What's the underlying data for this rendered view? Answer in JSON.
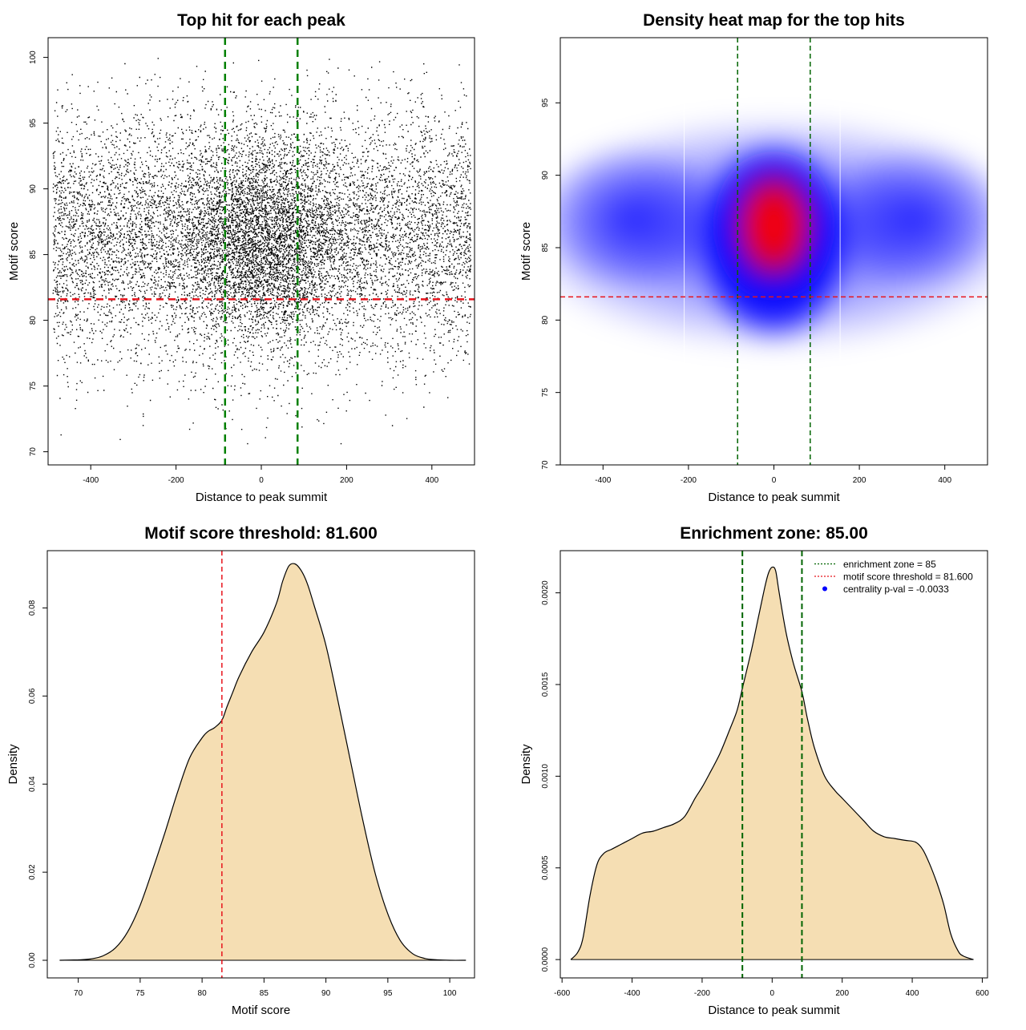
{
  "chart_data": [
    {
      "id": "scatter",
      "type": "scatter",
      "title": "Top hit for each peak",
      "xlabel": "Distance to peak summit",
      "ylabel": "Motif score",
      "xlim": [
        -500,
        500
      ],
      "ylim": [
        69,
        101.5
      ],
      "xticks": [
        -400,
        -200,
        0,
        200,
        400
      ],
      "yticks": [
        70,
        75,
        80,
        85,
        90,
        95,
        100
      ],
      "vlines": [
        -85,
        85
      ],
      "hline": 81.6,
      "distribution": {
        "n_points": 12000,
        "x_range": [
          -490,
          490
        ],
        "central_fraction": 0.28,
        "central_x_sd": 95,
        "background_score_mean": 86.5,
        "background_score_sd": 4.7,
        "central_score_mean": 86.0,
        "central_score_sd": 3.8
      },
      "grid": false
    },
    {
      "id": "heatmap",
      "type": "heatmap",
      "title": "Density heat map for the top hits",
      "xlabel": "Distance to peak summit",
      "ylabel": "Motif score",
      "xlim": [
        -500,
        500
      ],
      "ylim": [
        70,
        99.5
      ],
      "xticks": [
        -400,
        -200,
        0,
        200,
        400
      ],
      "yticks": [
        70,
        75,
        80,
        85,
        90,
        95
      ],
      "vlines": [
        -85,
        85
      ],
      "hline": 81.6,
      "peak": {
        "x": 0,
        "y": 86.5
      },
      "colors": {
        "low": "#ffffff",
        "mid": "#0000ff",
        "high": "#ff0000"
      },
      "grid": false
    },
    {
      "id": "score_density",
      "type": "area",
      "title": "Motif score threshold: 81.600",
      "xlabel": "Motif score",
      "ylabel": "Density",
      "xlim": [
        67.5,
        102
      ],
      "ylim": [
        -0.004,
        0.093
      ],
      "xticks": [
        70,
        75,
        80,
        85,
        90,
        95,
        100
      ],
      "yticks": [
        0.0,
        0.02,
        0.04,
        0.06,
        0.08
      ],
      "ytick_labels": [
        "0.00",
        "0.02",
        "0.04",
        "0.06",
        "0.08"
      ],
      "x": [
        68.5,
        70,
        71,
        72,
        73,
        74,
        75,
        76,
        77,
        78,
        79,
        80,
        80.5,
        81,
        81.6,
        82,
        82.5,
        83,
        84,
        85,
        86,
        86.5,
        87,
        87.5,
        88,
        88.5,
        89,
        90,
        91,
        92,
        93,
        94,
        95,
        96,
        97,
        98,
        99,
        100,
        101.3
      ],
      "y": [
        0.0,
        0.0001,
        0.0003,
        0.001,
        0.0028,
        0.0065,
        0.0125,
        0.0205,
        0.029,
        0.038,
        0.046,
        0.0505,
        0.052,
        0.0528,
        0.0545,
        0.0575,
        0.061,
        0.0645,
        0.07,
        0.0745,
        0.081,
        0.086,
        0.0895,
        0.09,
        0.0885,
        0.0855,
        0.081,
        0.0715,
        0.0585,
        0.045,
        0.0315,
        0.0195,
        0.0105,
        0.0045,
        0.0015,
        0.0004,
        0.0001,
        0.0,
        0.0
      ],
      "fill": "#f5deb3",
      "threshold": 81.6,
      "grid": false
    },
    {
      "id": "distance_density",
      "type": "area",
      "title": "Enrichment zone: 85.00",
      "xlabel": "Distance to peak summit",
      "ylabel": "Density",
      "xlim": [
        -605,
        615
      ],
      "ylim": [
        -0.0001,
        0.00223
      ],
      "xticks": [
        -600,
        -400,
        -200,
        0,
        200,
        400,
        600
      ],
      "yticks": [
        0.0,
        0.0005,
        0.001,
        0.0015,
        0.002
      ],
      "ytick_labels": [
        "0.0000",
        "0.0005",
        "0.0010",
        "0.0015",
        "0.0020"
      ],
      "x": [
        -575,
        -555,
        -540,
        -520,
        -500,
        -480,
        -460,
        -440,
        -420,
        -400,
        -370,
        -340,
        -310,
        -280,
        -250,
        -220,
        -200,
        -180,
        -150,
        -120,
        -100,
        -85,
        -60,
        -40,
        -20,
        -10,
        0,
        10,
        20,
        40,
        60,
        85,
        100,
        120,
        150,
        180,
        200,
        230,
        260,
        290,
        320,
        350,
        380,
        410,
        430,
        450,
        470,
        490,
        510,
        530,
        545,
        575
      ],
      "y": [
        0.0,
        4e-05,
        0.00012,
        0.00035,
        0.00052,
        0.00058,
        0.0006,
        0.00062,
        0.00064,
        0.00066,
        0.00069,
        0.0007,
        0.00072,
        0.00074,
        0.00078,
        0.00088,
        0.00094,
        0.00101,
        0.00112,
        0.00126,
        0.00136,
        0.00148,
        0.00168,
        0.00186,
        0.00204,
        0.00211,
        0.00214,
        0.00212,
        0.002,
        0.00178,
        0.00162,
        0.00146,
        0.00132,
        0.00116,
        0.001,
        0.00092,
        0.00088,
        0.00082,
        0.00076,
        0.0007,
        0.00067,
        0.00066,
        0.00065,
        0.00064,
        0.0006,
        0.00052,
        0.00042,
        0.0003,
        0.00014,
        5e-05,
        2e-05,
        0.0
      ],
      "fill": "#f5deb3",
      "vlines": [
        -85,
        85
      ],
      "legend": {
        "placement": "top-right",
        "entries": [
          {
            "label": "enrichment zone = 85",
            "color": "#006400",
            "style": "dotted-line"
          },
          {
            "label": "motif score threshold = 81.600",
            "color": "#e8131b",
            "style": "dotted-line"
          },
          {
            "label": "centrality p-val = -0.0033",
            "color": "#0000ff",
            "style": "point"
          }
        ]
      },
      "grid": false
    }
  ]
}
